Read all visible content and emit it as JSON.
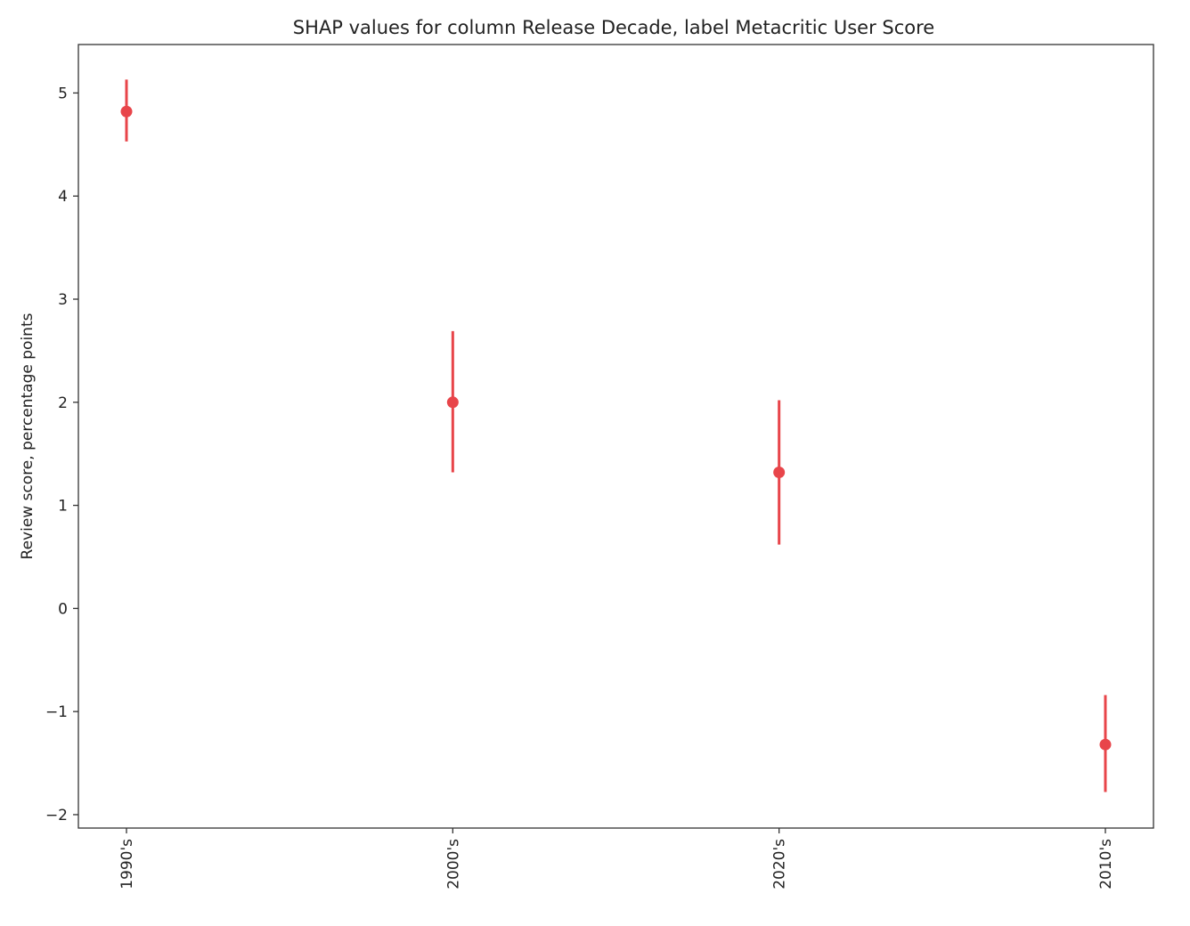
{
  "chart_data": {
    "type": "scatter",
    "title": "SHAP values for column Release Decade, label Metacritic User Score",
    "xlabel": "",
    "ylabel": "Review score, percentage points",
    "categories": [
      "1990's",
      "2000's",
      "2020's",
      "2010's"
    ],
    "series": [
      {
        "values": [
          4.82,
          2.0,
          1.32,
          -1.32
        ],
        "error_low": [
          4.53,
          1.32,
          0.62,
          -1.78
        ],
        "error_high": [
          5.13,
          2.69,
          2.02,
          -0.84
        ]
      }
    ],
    "yticks": [
      -2,
      -1,
      0,
      1,
      2,
      3,
      4,
      5
    ],
    "ytick_labels": [
      "−2",
      "−1",
      "0",
      "1",
      "2",
      "3",
      "4",
      "5"
    ],
    "ylim": [
      -2.13,
      5.47
    ],
    "grid": false,
    "x_tick_rotation": "vertical",
    "colors": {
      "marker": "#e8454a",
      "axis": "#333333",
      "text": "#222222"
    }
  }
}
